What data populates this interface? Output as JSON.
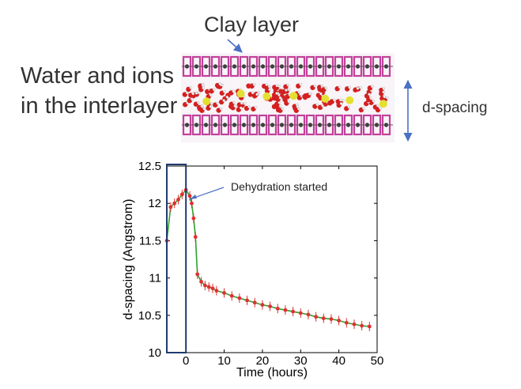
{
  "labels": {
    "clay_layer": "Clay layer",
    "water_line1": "Water and ions",
    "water_line2": "in the interlayer",
    "d_spacing": "d-spacing"
  },
  "colors": {
    "arrow_blue": "#4a72c4",
    "clay_magenta": "#c2409a",
    "water_red": "#d42020",
    "ion_yellow": "#e4e030",
    "marker_red": "#e03030",
    "line_green": "#2fa02f",
    "box_navy": "#1e3a6e"
  },
  "chart_data": {
    "type": "scatter",
    "title": "",
    "xlabel": "Time (hours)",
    "ylabel": "d-spacing (Angstrom)",
    "xlim": [
      -5,
      50
    ],
    "ylim": [
      10,
      12.5
    ],
    "xticks": [
      "0",
      "10",
      "20",
      "30",
      "40",
      "50"
    ],
    "yticks": [
      "10",
      "10.5",
      "11",
      "11.5",
      "12",
      "12.5"
    ],
    "annotation": "Dehydration started",
    "series": [
      {
        "name": "d-spacing",
        "x": [
          -5,
          -4,
          -3,
          -2,
          -1,
          0,
          1,
          1.5,
          2,
          2.5,
          3,
          4,
          5,
          6,
          7,
          8,
          10,
          12,
          14,
          16,
          18,
          20,
          22,
          24,
          26,
          28,
          30,
          32,
          34,
          36,
          38,
          40,
          42,
          44,
          46,
          48
        ],
        "y": [
          11.5,
          11.95,
          12.0,
          12.05,
          12.12,
          12.18,
          12.1,
          12.0,
          11.8,
          11.55,
          11.05,
          10.95,
          10.9,
          10.88,
          10.86,
          10.83,
          10.8,
          10.76,
          10.73,
          10.7,
          10.67,
          10.64,
          10.62,
          10.59,
          10.57,
          10.55,
          10.53,
          10.51,
          10.48,
          10.46,
          10.45,
          10.43,
          10.4,
          10.38,
          10.36,
          10.35
        ]
      }
    ]
  }
}
